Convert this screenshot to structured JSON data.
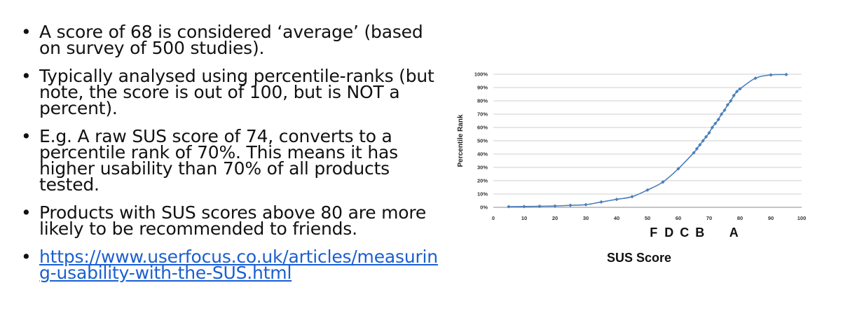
{
  "bullets": [
    "A score of 68 is considered ‘average’ (based on survey of 500 studies).",
    "Typically analysed using percentile-ranks (but note, the score is out of 100, but is NOT a percent).",
    "E.g. A raw SUS score of 74, converts to a percentile rank of 70%. This means it has higher usability than 70% of all products tested.",
    "Products with SUS scores above 80 are more likely to be recommended to friends."
  ],
  "link": "https://www.userfocus.co.uk/articles/measuring-usability-with-the-SUS.html",
  "colors": {
    "series": "#4a7ebb",
    "link": "#1a5fd0",
    "grid": "#bfbfbf"
  },
  "chart_data": {
    "type": "line",
    "xlabel": "SUS Score",
    "ylabel": "Percentile Rank",
    "xlim": [
      0,
      100
    ],
    "ylim": [
      0,
      100
    ],
    "x_ticks": [
      "0",
      "10",
      "20",
      "30",
      "40",
      "50",
      "60",
      "70",
      "80",
      "90",
      "100"
    ],
    "y_ticks": [
      "0%",
      "10%",
      "20%",
      "30%",
      "40%",
      "50%",
      "60%",
      "70%",
      "80%",
      "90%",
      "100%"
    ],
    "grid": "horizontal",
    "grades": [
      {
        "label": "F",
        "x": 52
      },
      {
        "label": "D",
        "x": 57
      },
      {
        "label": "C",
        "x": 62
      },
      {
        "label": "B",
        "x": 67
      },
      {
        "label": "A",
        "x": 78
      }
    ],
    "series": [
      {
        "x": [
          5,
          10,
          15,
          20,
          25,
          30,
          35,
          40,
          45,
          50,
          55,
          60,
          65,
          66,
          67,
          68,
          69,
          70,
          71,
          72,
          73,
          74,
          75,
          76,
          77,
          78,
          79,
          80,
          85,
          90,
          95
        ],
        "y": [
          0.5,
          0.6,
          0.8,
          1,
          1.5,
          2,
          4,
          6,
          8,
          13,
          19,
          29,
          41,
          44,
          47,
          50,
          53,
          56,
          60,
          63,
          66,
          70,
          73,
          77,
          80,
          84,
          87,
          89,
          97,
          99.5,
          99.8
        ]
      }
    ]
  }
}
